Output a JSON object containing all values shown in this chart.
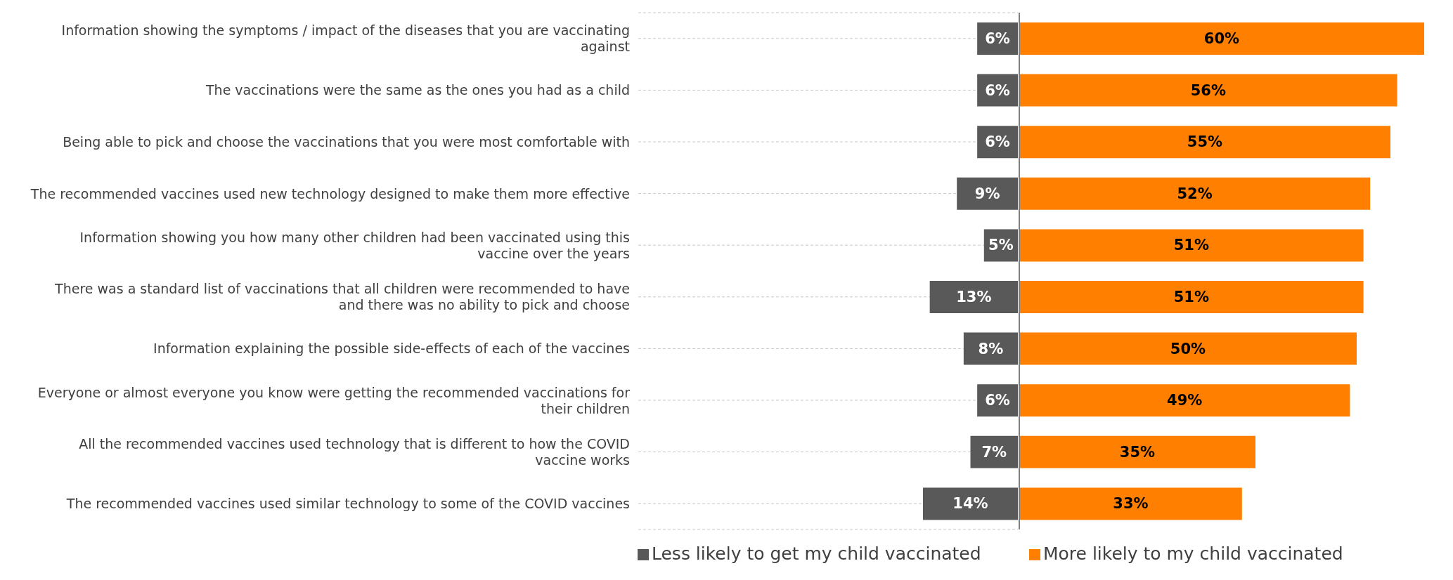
{
  "chart_data": [
    {
      "type": "bar",
      "orientation": "horizontal",
      "tick_labels": "y",
      "legend": "bottom left",
      "grid": "y",
      "categories": [
        "Information showing the symptoms / impact of the diseases that you are vaccinating against",
        "The vaccinations were the same as the ones you had as a child",
        "Being able to pick and choose the vaccinations that you were most comfortable with",
        "The recommended vaccines used new technology designed to make them more effective",
        "Information showing you how many other children had been vaccinated using this vaccine over the years",
        "There was a standard list of vaccinations that all children were recommended to have and there was no ability to pick and choose",
        "Information explaining the possible side-effects of each of the vaccines",
        "Everyone or almost everyone you know were getting the recommended vaccinations for their children",
        "All the recommended vaccines used technology that is different to how the COVID vaccine works",
        "The recommended vaccines used similar technology to some of the COVID vaccines"
      ],
      "series": [
        {
          "name": "Less likely to get my child vaccinated",
          "color": "#595959",
          "values": [
            6,
            6,
            6,
            9,
            5,
            13,
            8,
            6,
            7,
            14
          ],
          "value_labels": [
            "6%",
            "6%",
            "6%",
            "9%",
            "5%",
            "13%",
            "8%",
            "6%",
            "7%",
            "14%"
          ]
        }
      ]
    },
    {
      "type": "bar",
      "orientation": "horizontal",
      "tick_labels": false,
      "legend": "bottom left",
      "categories": [
        null,
        null,
        null,
        null,
        null,
        null,
        null,
        null,
        null,
        null
      ],
      "series": [
        {
          "name": "More likely to my child vaccinated",
          "color": "#ff8000",
          "values": [
            60,
            56,
            55,
            52,
            51,
            51,
            50,
            49,
            35,
            33
          ],
          "value_labels": [
            "60%",
            "56%",
            "55%",
            "52%",
            "51%",
            "51%",
            "50%",
            "49%",
            "35%",
            "33%"
          ]
        }
      ]
    }
  ]
}
